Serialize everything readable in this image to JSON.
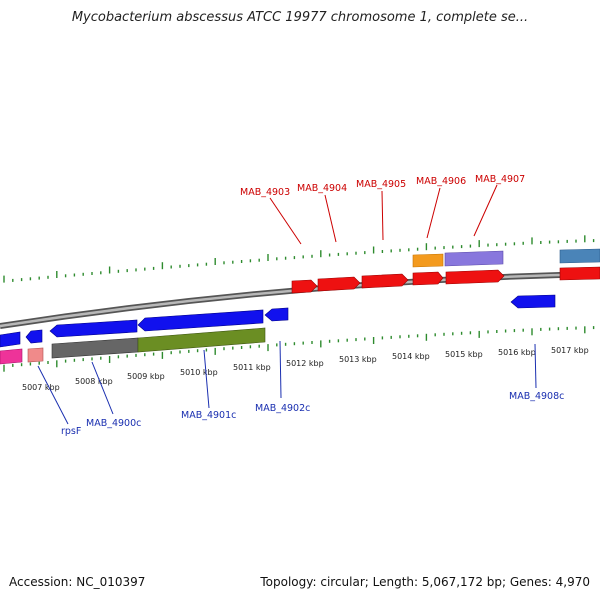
{
  "title": "Mycobacterium abscessus ATCC 19977 chromosome 1, complete se...",
  "footer": {
    "accession": "Accession: NC_010397",
    "topology": "Topology: circular; Length: 5,067,172 bp; Genes: 4,970"
  },
  "colors": {
    "forward_gene": "#ee1111",
    "reverse_gene": "#1111ee",
    "tick": "#2e8b2e",
    "backbone": "#8a8a8a",
    "label_forward": "#cc0000",
    "label_reverse": "#1a2fb0"
  },
  "ticks": [
    {
      "label": "5007 kbp"
    },
    {
      "label": "5008 kbp"
    },
    {
      "label": "5009 kbp"
    },
    {
      "label": "5010 kbp"
    },
    {
      "label": "5011 kbp"
    },
    {
      "label": "5012 kbp"
    },
    {
      "label": "5013 kbp"
    },
    {
      "label": "5014 kbp"
    },
    {
      "label": "5015 kbp"
    },
    {
      "label": "5016 kbp"
    },
    {
      "label": "5017 kbp"
    }
  ],
  "gene_labels_forward": [
    {
      "name": "MAB_4903"
    },
    {
      "name": "MAB_4904"
    },
    {
      "name": "MAB_4905"
    },
    {
      "name": "MAB_4906"
    },
    {
      "name": "MAB_4907"
    }
  ],
  "gene_labels_reverse": [
    {
      "name": "rpsF"
    },
    {
      "name": "MAB_4900c"
    },
    {
      "name": "MAB_4901c"
    },
    {
      "name": "MAB_4902c"
    },
    {
      "name": "MAB_4908c"
    }
  ]
}
